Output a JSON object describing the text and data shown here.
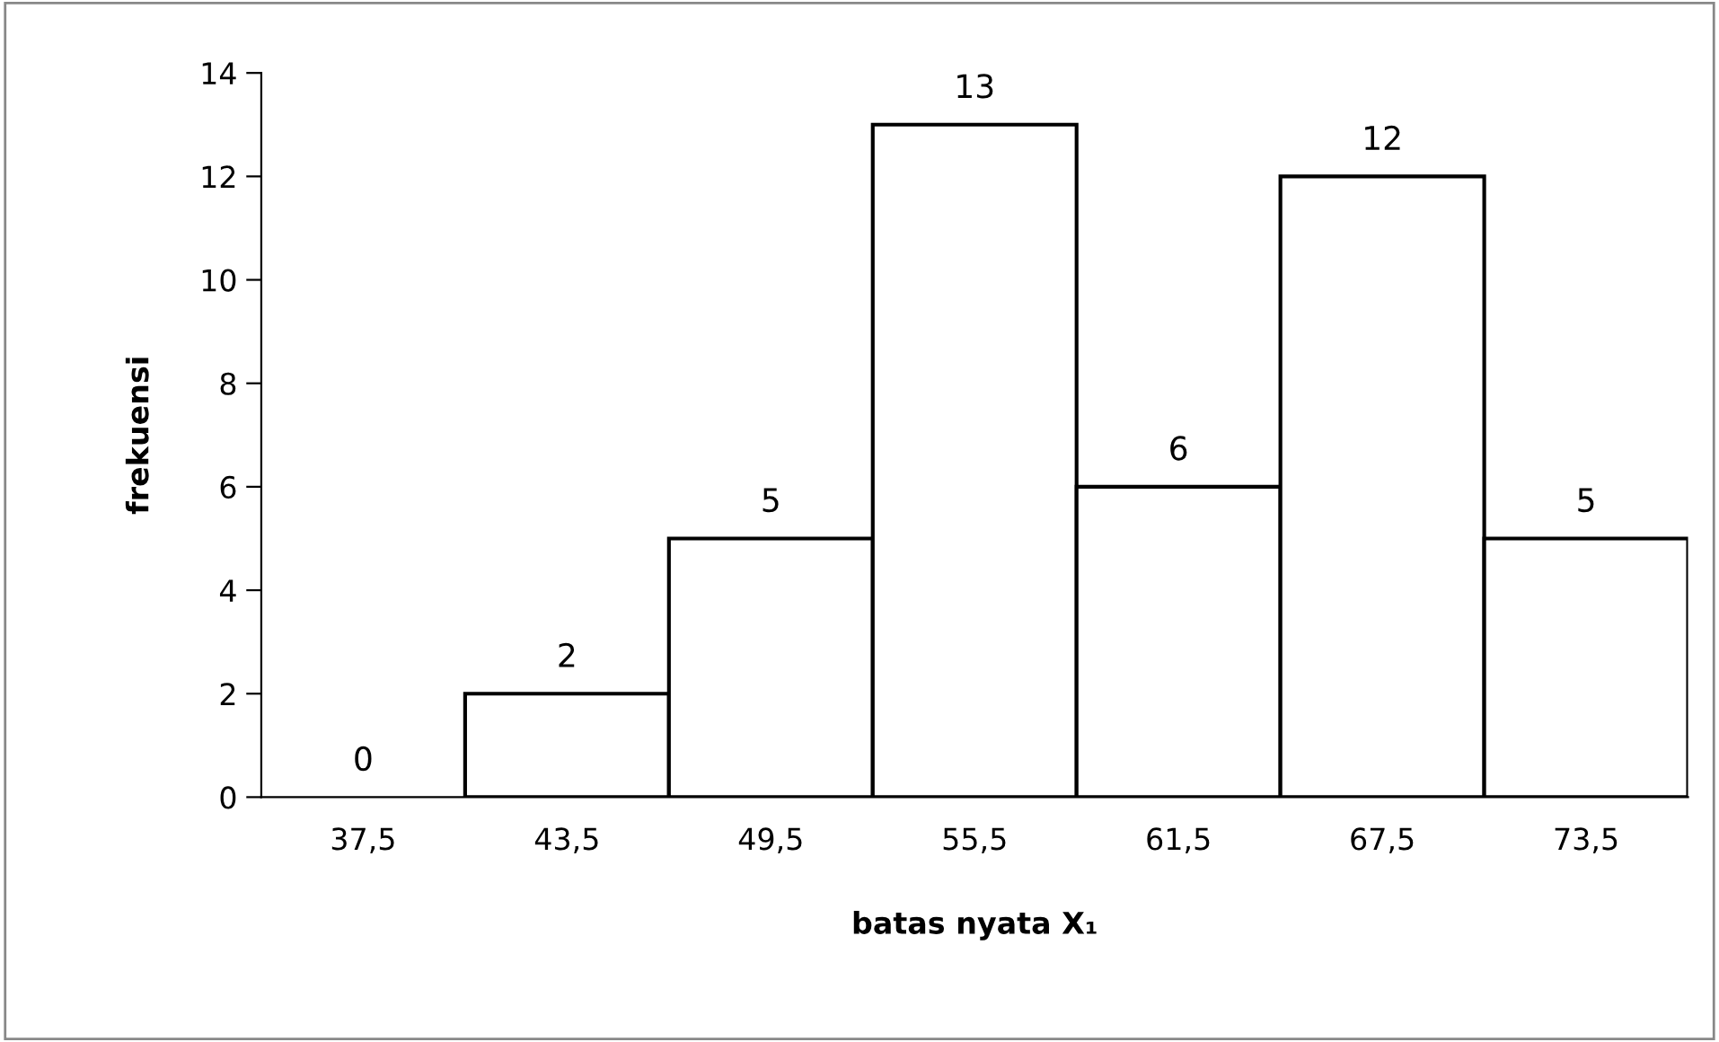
{
  "chart_data": {
    "type": "bar",
    "xlabel": "batas nyata X₁",
    "ylabel": "frekuensi",
    "categories": [
      "37,5",
      "43,5",
      "49,5",
      "55,5",
      "61,5",
      "67,5",
      "73,5"
    ],
    "values": [
      0,
      2,
      5,
      13,
      6,
      12,
      5
    ],
    "color": "#ffffff",
    "ylim": [
      0,
      14
    ],
    "yticks": [
      0,
      2,
      4,
      6,
      8,
      10,
      12,
      14
    ],
    "grid": false,
    "data_labels": true
  }
}
